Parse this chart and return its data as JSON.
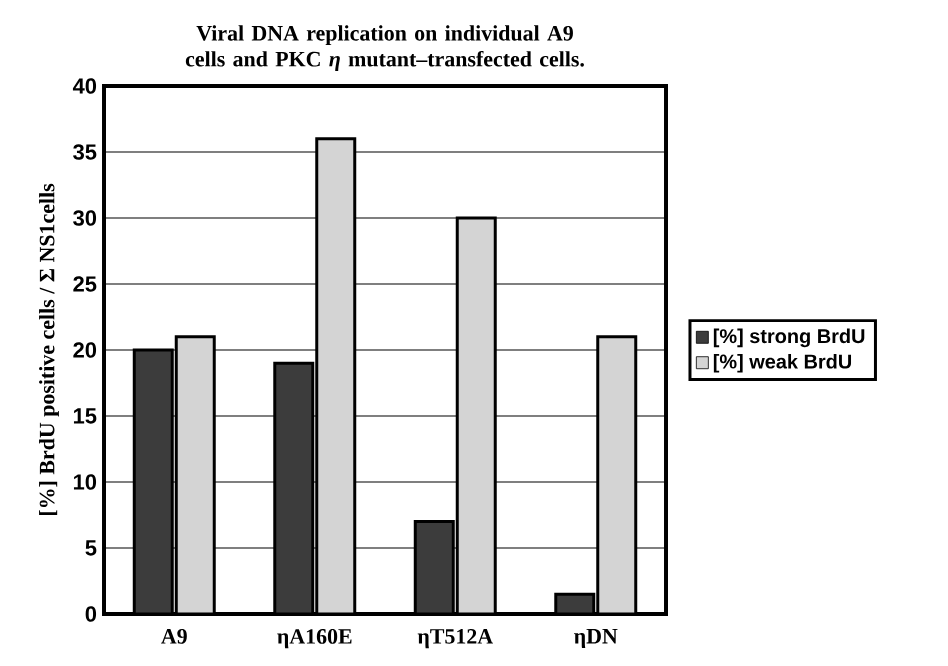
{
  "chart_data": {
    "type": "bar",
    "title": "Viral DNA replication on individual A9 cells and PKC *η* mutant–transfected cells.",
    "ylabel": "[%] BrdU positive cells / Σ NS1cells",
    "categories": [
      "A9",
      "ηA160E",
      "ηT512A",
      "ηDN"
    ],
    "series": [
      {
        "name": "[%] strong BrdU",
        "color": "#3c3c3c",
        "values": [
          20,
          19,
          7,
          1.5
        ]
      },
      {
        "name": "[%] weak BrdU",
        "color": "#d4d4d4",
        "values": [
          21,
          36,
          30,
          21
        ]
      }
    ],
    "ylim": [
      0,
      40
    ],
    "yticks": [
      0,
      5,
      10,
      15,
      20,
      25,
      30,
      35,
      40
    ],
    "grid": "y",
    "legend": "right"
  }
}
